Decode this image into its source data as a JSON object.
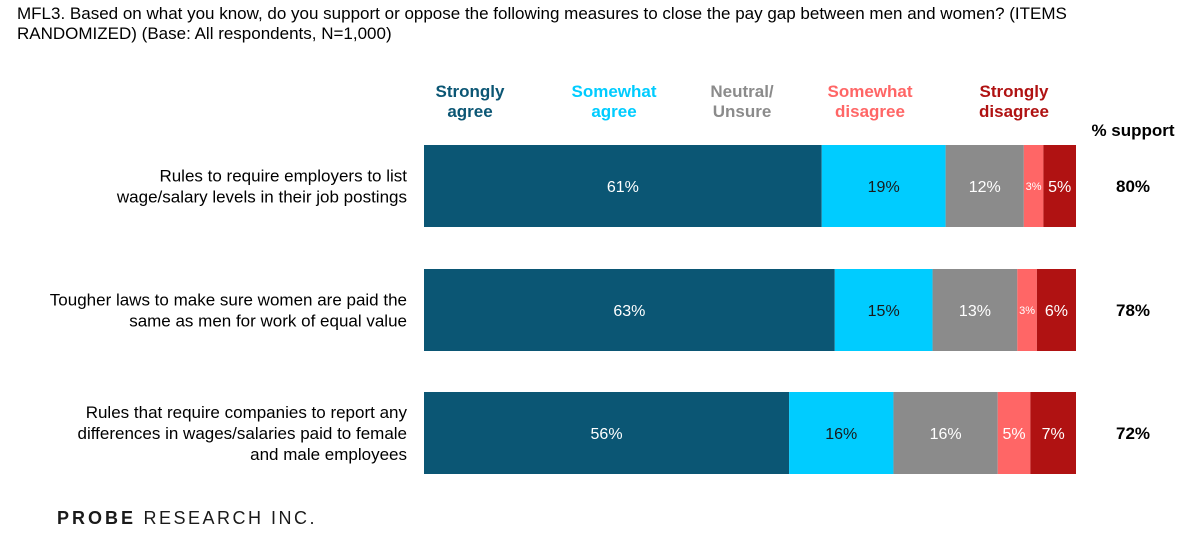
{
  "title": "MFL3. Based on what you know, do you support or oppose the following measures to close the pay gap between men and women? (ITEMS RANDOMIZED) (Base: All respondents, N=1,000)",
  "logo": {
    "bold_part": "PROBE",
    "rest": " RESEARCH INC."
  },
  "colors": {
    "strongly_agree": "#0b5674",
    "somewhat_agree": "#00ccff",
    "neutral": "#8b8b8b",
    "somewhat_disagree": "#ff6666",
    "strongly_disagree": "#b01212"
  },
  "chart_data": {
    "type": "bar",
    "orientation": "horizontal",
    "stacked": true,
    "legend_placement": "top",
    "support_header": "% support",
    "categories": [
      "Rules to require employers to list wage/salary levels in their job postings",
      "Tougher laws to make sure women are paid the same as men for work of equal value",
      "Rules that require companies to report any differences in wages/salaries paid to female and male employees"
    ],
    "category_lines": [
      [
        "Rules to require employers to list",
        "wage/salary levels in their job postings"
      ],
      [
        "Tougher laws to make sure women are paid the",
        "same as men for work of equal value"
      ],
      [
        "Rules that require companies to report any",
        "differences in wages/salaries paid to female",
        "and male employees"
      ]
    ],
    "series": [
      {
        "name": "Strongly agree",
        "name_lines": [
          "Strongly",
          "agree"
        ],
        "color": "#0b5674",
        "values": [
          61,
          63,
          56
        ],
        "labels": [
          "61%",
          "63%",
          "56%"
        ]
      },
      {
        "name": "Somewhat agree",
        "name_lines": [
          "Somewhat",
          "agree"
        ],
        "color": "#00ccff",
        "values": [
          19,
          15,
          16
        ],
        "labels": [
          "19%",
          "15%",
          "16%"
        ]
      },
      {
        "name": "Neutral/ Unsure",
        "name_lines": [
          "Neutral/",
          "Unsure"
        ],
        "color": "#8b8b8b",
        "values": [
          12,
          13,
          16
        ],
        "labels": [
          "12%",
          "13%",
          "16%"
        ]
      },
      {
        "name": "Somewhat disagree",
        "name_lines": [
          "Somewhat",
          "disagree"
        ],
        "color": "#ff6666",
        "values": [
          3,
          3,
          5
        ],
        "labels": [
          "3%",
          "3%",
          "5%"
        ]
      },
      {
        "name": "Strongly disagree",
        "name_lines": [
          "Strongly",
          "disagree"
        ],
        "color": "#b01212",
        "values": [
          5,
          6,
          7
        ],
        "labels": [
          "5%",
          "6%",
          "7%"
        ]
      }
    ],
    "support": [
      80,
      78,
      72
    ],
    "support_labels": [
      "80%",
      "78%",
      "72%"
    ],
    "xlim": [
      0,
      100
    ]
  }
}
